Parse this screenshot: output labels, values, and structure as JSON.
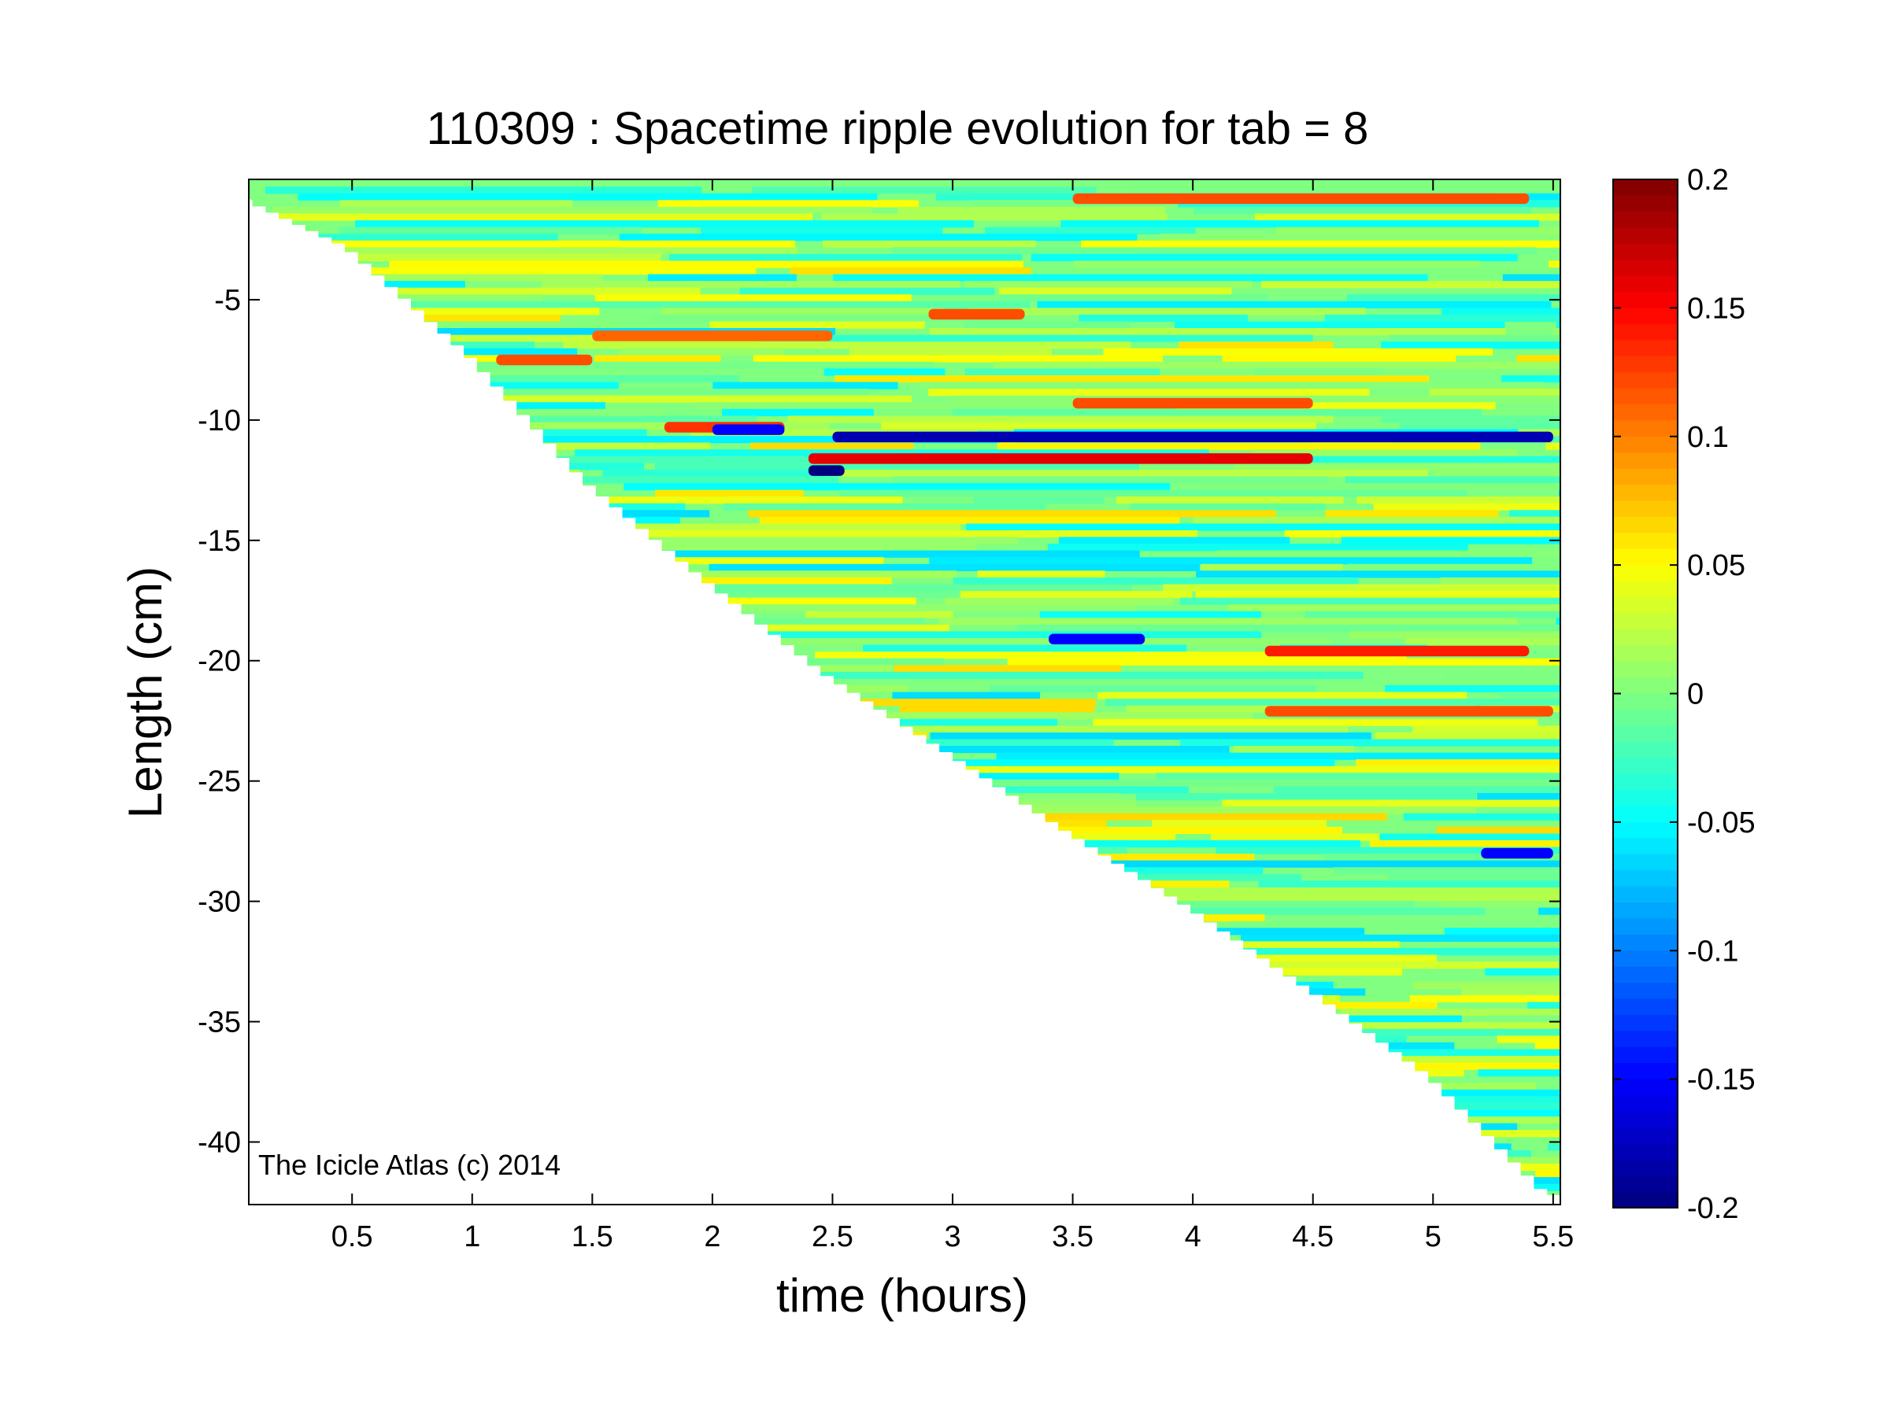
{
  "chart_data": {
    "type": "heatmap",
    "title": "110309 : Spacetime ripple evolution for tab = 8",
    "xlabel": "time (hours)",
    "ylabel": "Length (cm)",
    "xlim": [
      0.07,
      5.53
    ],
    "ylim": [
      -42.6,
      0
    ],
    "x_ticks": [
      0.5,
      1,
      1.5,
      2,
      2.5,
      3,
      3.5,
      4,
      4.5,
      5,
      5.5
    ],
    "x_tick_labels": [
      "0.5",
      "1",
      "1.5",
      "2",
      "2.5",
      "3",
      "3.5",
      "4",
      "4.5",
      "5",
      "5.5"
    ],
    "y_ticks": [
      -5,
      -10,
      -15,
      -20,
      -25,
      -30,
      -35,
      -40
    ],
    "y_tick_labels": [
      "-5",
      "-10",
      "-15",
      "-20",
      "-25",
      "-30",
      "-35",
      "-40"
    ],
    "colormap": "jet",
    "clim": [
      -0.2,
      0.2
    ],
    "colorbar_ticks": [
      0.2,
      0.15,
      0.1,
      0.05,
      0,
      -0.05,
      -0.1,
      -0.15,
      -0.2
    ],
    "colorbar_tick_labels": [
      "0.2",
      "0.15",
      "0.1",
      "0.05",
      "0",
      "-0.05",
      "-0.1",
      "-0.15",
      "-0.2"
    ],
    "icicle_length_boundary": {
      "time_hours": [
        0.07,
        0.5,
        1.0,
        1.5,
        2.0,
        2.5,
        3.0,
        3.5,
        4.0,
        4.5,
        5.0,
        5.5
      ],
      "length_cm": [
        -0.8,
        -2.8,
        -7.2,
        -12.6,
        -16.7,
        -20.6,
        -23.8,
        -27.1,
        -30.2,
        -33.6,
        -37.2,
        -42.2
      ]
    },
    "prominent_bands": [
      {
        "length_cm": -10.7,
        "value": -0.18,
        "t_start": 2.5,
        "t_end": 5.5
      },
      {
        "length_cm": -11.6,
        "value": 0.16,
        "t_start": 2.4,
        "t_end": 4.5
      },
      {
        "length_cm": -10.3,
        "value": 0.13,
        "t_start": 1.8,
        "t_end": 2.3
      },
      {
        "length_cm": -10.4,
        "value": -0.15,
        "t_start": 2.0,
        "t_end": 2.3
      },
      {
        "length_cm": -9.3,
        "value": 0.12,
        "t_start": 3.5,
        "t_end": 4.5
      },
      {
        "length_cm": -12.1,
        "value": -0.2,
        "t_start": 2.4,
        "t_end": 2.55
      },
      {
        "length_cm": -19.6,
        "value": 0.14,
        "t_start": 4.3,
        "t_end": 5.4
      },
      {
        "length_cm": -19.1,
        "value": -0.15,
        "t_start": 3.4,
        "t_end": 3.8
      },
      {
        "length_cm": -22.1,
        "value": 0.12,
        "t_start": 4.3,
        "t_end": 5.5
      },
      {
        "length_cm": -28.0,
        "value": -0.15,
        "t_start": 5.2,
        "t_end": 5.5
      },
      {
        "length_cm": -0.8,
        "value": 0.12,
        "t_start": 3.5,
        "t_end": 5.4
      },
      {
        "length_cm": -5.6,
        "value": 0.12,
        "t_start": 2.9,
        "t_end": 3.3
      },
      {
        "length_cm": -6.5,
        "value": 0.11,
        "t_start": 1.5,
        "t_end": 2.5
      },
      {
        "length_cm": -7.5,
        "value": 0.12,
        "t_start": 1.1,
        "t_end": 1.5
      }
    ],
    "annotations": [
      "The Icicle Atlas (c) 2014"
    ]
  }
}
